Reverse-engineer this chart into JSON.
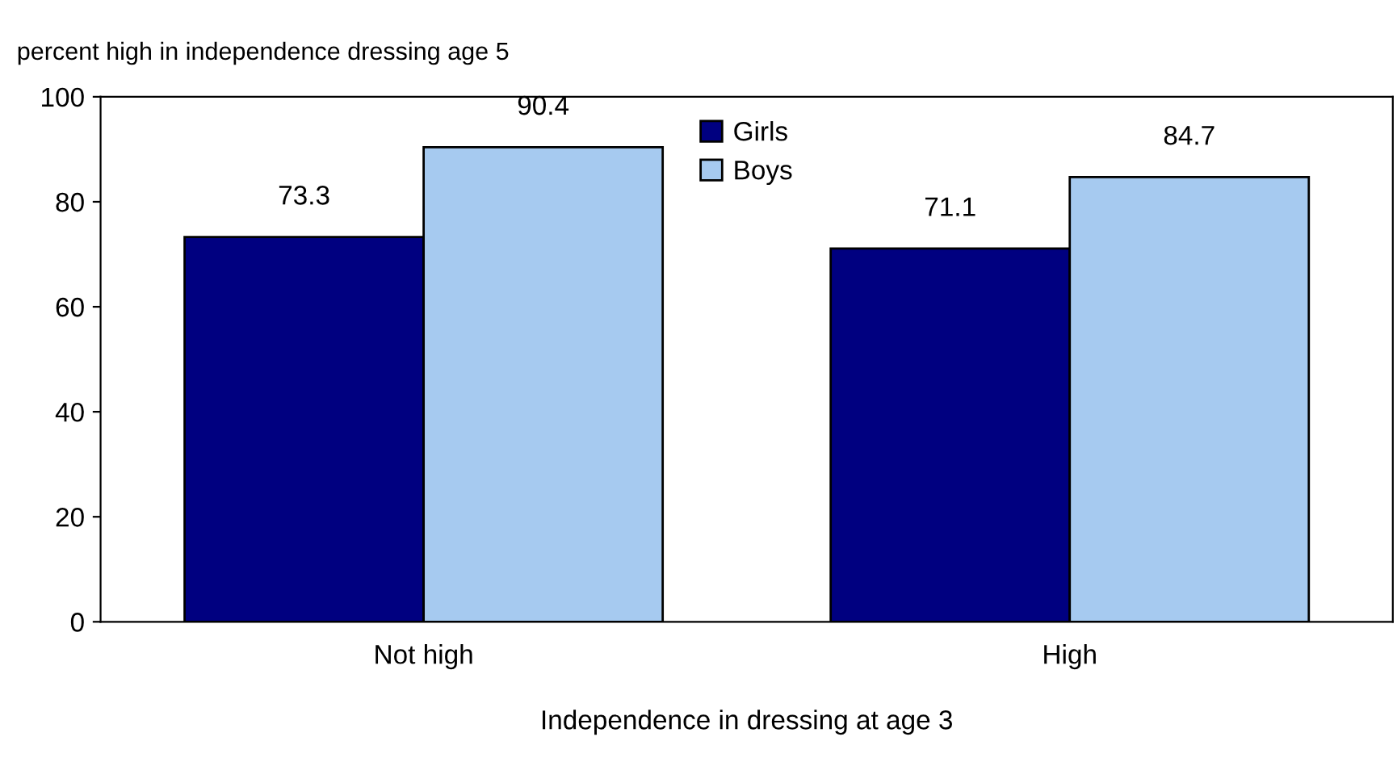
{
  "chart_data": {
    "type": "bar",
    "ylabel": "percent high in independence dressing age 5",
    "xlabel": "Independence in dressing at age 3",
    "categories": [
      "Not high",
      "High"
    ],
    "series": [
      {
        "name": "Girls",
        "color": "#000080",
        "values": [
          73.3,
          71.1
        ]
      },
      {
        "name": "Boys",
        "color": "#a6caf0",
        "values": [
          90.4,
          84.7
        ]
      }
    ],
    "ylim": [
      0,
      100
    ],
    "yticks": [
      0,
      20,
      40,
      60,
      80,
      100
    ],
    "data_labels": true,
    "grid": false,
    "legend": "top"
  }
}
